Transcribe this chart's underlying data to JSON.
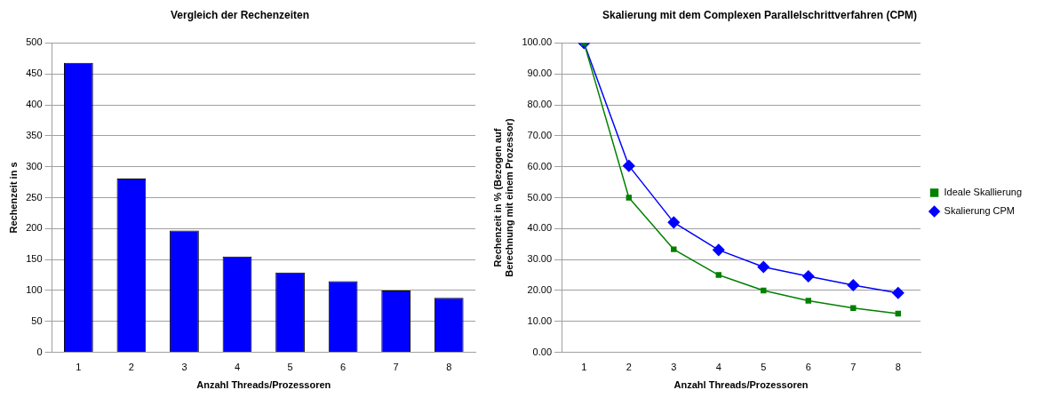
{
  "chart_data": [
    {
      "type": "bar",
      "title": "Vergleich der Rechenzeiten",
      "xlabel": "Anzahl Threads/Prozessoren",
      "ylabel": "Rechenzeit in s",
      "categories": [
        "1",
        "2",
        "3",
        "4",
        "5",
        "6",
        "7",
        "8"
      ],
      "values": [
        468,
        281,
        197,
        155,
        129,
        115,
        100,
        88
      ],
      "color": "#0000ff",
      "ylim": [
        0,
        500
      ],
      "yticks": [
        0,
        50,
        100,
        150,
        200,
        250,
        300,
        350,
        400,
        450,
        500
      ],
      "grid": "y",
      "legend": false
    },
    {
      "type": "line",
      "title": "Skalierung mit dem Complexen Parallelschrittverfahren (CPM)",
      "xlabel": "Anzahl Threads/Prozessoren",
      "ylabel": "Rechenzeit in % (Bezogen auf Berechnung mit einem Prozessor)",
      "categories": [
        "1",
        "2",
        "3",
        "4",
        "5",
        "6",
        "7",
        "8"
      ],
      "series": [
        {
          "name": "Skalierung CPM",
          "color": "#0000ff",
          "marker": "diamond",
          "values": [
            100,
            60.3,
            42,
            33.1,
            27.6,
            24.6,
            21.7,
            19.2
          ]
        },
        {
          "name": "Ideale Skallierung",
          "color": "#008000",
          "marker": "square",
          "values": [
            100,
            50,
            33.3,
            25,
            20,
            16.7,
            14.3,
            12.5
          ]
        }
      ],
      "ylim": [
        0,
        100
      ],
      "yticks": [
        {
          "value": 0,
          "label": "0.00"
        },
        {
          "value": 10,
          "label": "10.00"
        },
        {
          "value": 20,
          "label": "20.00"
        },
        {
          "value": 30,
          "label": "30.00"
        },
        {
          "value": 40,
          "label": "40.00"
        },
        {
          "value": 50,
          "label": "50.00"
        },
        {
          "value": 60,
          "label": "60.00"
        },
        {
          "value": 70,
          "label": "70.00"
        },
        {
          "value": 80,
          "label": "80.00"
        },
        {
          "value": 90,
          "label": "90.00"
        },
        {
          "value": 100,
          "label": "100.00"
        }
      ],
      "grid": "y",
      "legend": "right"
    }
  ]
}
